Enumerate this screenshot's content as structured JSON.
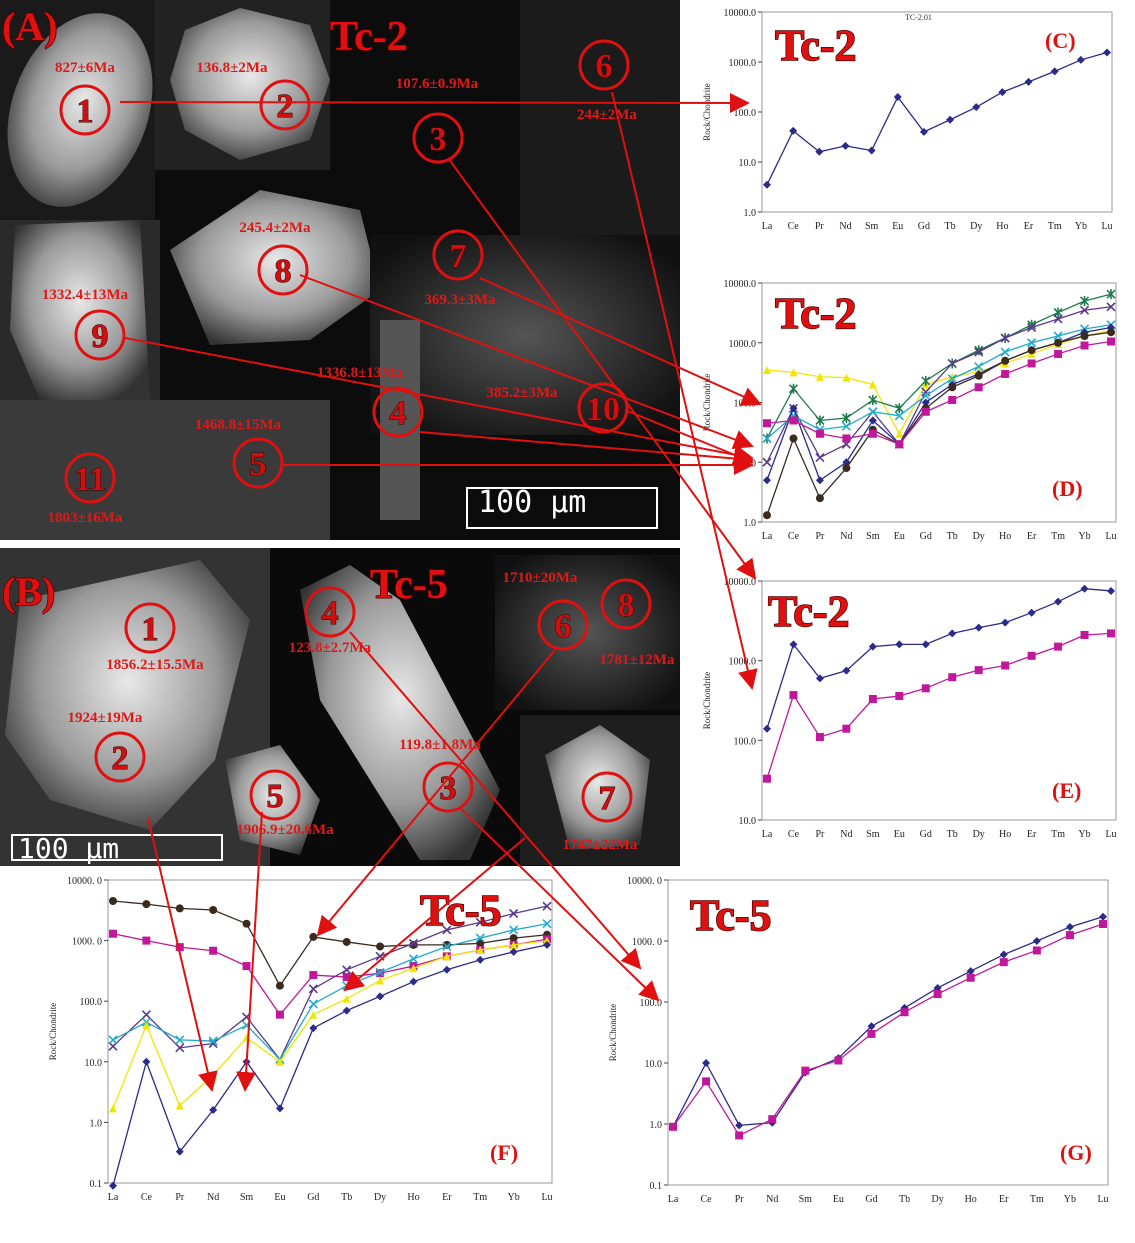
{
  "panel_a": {
    "label": "(A)",
    "title": "Tc-2",
    "scale_bar": "100 μm",
    "grains": [
      {
        "number": 1,
        "age": "827±6Ma"
      },
      {
        "number": 2,
        "age": "136.8±2Ma"
      },
      {
        "number": 3,
        "age": "107.6±0.9Ma"
      },
      {
        "number": 4,
        "age": "1336.8±13Ma"
      },
      {
        "number": 5,
        "age": "1468.8±15Ma"
      },
      {
        "number": 6,
        "age": "244±2Ma"
      },
      {
        "number": 7,
        "age": "369.3±3Ma"
      },
      {
        "number": 8,
        "age": "245.4±2Ma"
      },
      {
        "number": 9,
        "age": "1332.4±13Ma"
      },
      {
        "number": 10,
        "age": "385.2±3Ma"
      },
      {
        "number": 11,
        "age": "1803±16Ma"
      }
    ]
  },
  "panel_b": {
    "label": "(B)",
    "title": "Tc-5",
    "scale_bar": "100 μm",
    "grains": [
      {
        "number": 1,
        "age": "1856.2±15.5Ma"
      },
      {
        "number": 2,
        "age": "1924±19Ma"
      },
      {
        "number": 3,
        "age": "119.8±1.8Ma"
      },
      {
        "number": 4,
        "age": "123.8±2.7Ma"
      },
      {
        "number": 5,
        "age": "1906.9±20.6Ma"
      },
      {
        "number": 6,
        "age": "1710±20Ma"
      },
      {
        "number": 7,
        "age": "1747±22Ma"
      },
      {
        "number": 8,
        "age": "1781±12Ma"
      }
    ]
  },
  "chart_data": [
    {
      "type": "line",
      "title": "Tc-2",
      "subtitle": "TC-2.01",
      "panel": "(C)",
      "ylabel": "Rock/Chondrite",
      "log_scale": true,
      "categories": [
        "La",
        "Ce",
        "Pr",
        "Nd",
        "Sm",
        "Eu",
        "Gd",
        "Tb",
        "Dy",
        "Ho",
        "Er",
        "Tm",
        "Yb",
        "Lu"
      ],
      "ylim": [
        1,
        10000
      ],
      "yticks": [
        {
          "value": 1,
          "label": "1.0"
        },
        {
          "value": 10,
          "label": "10.0"
        },
        {
          "value": 100,
          "label": "100.0"
        },
        {
          "value": 1000,
          "label": "1000.0"
        },
        {
          "value": 10000,
          "label": "10000.0"
        }
      ],
      "series": [
        {
          "color": "#2b2b8a",
          "marker": "diamond",
          "values": [
            3.5,
            42,
            16,
            21,
            17,
            200,
            40,
            70,
            125,
            250,
            400,
            650,
            1100,
            1550
          ]
        }
      ]
    },
    {
      "type": "line",
      "title": "Tc-2",
      "panel": "(D)",
      "ylabel": "Rock/Chondrite",
      "log_scale": true,
      "categories": [
        "La",
        "Ce",
        "Pr",
        "Nd",
        "Sm",
        "Eu",
        "Gd",
        "Tb",
        "Dy",
        "Ho",
        "Er",
        "Tm",
        "Yb",
        "Lu"
      ],
      "ylim": [
        1,
        10000
      ],
      "yticks": [
        {
          "value": 1,
          "label": "1.0"
        },
        {
          "value": 10,
          "label": "10.0"
        },
        {
          "value": 100,
          "label": "100.0"
        },
        {
          "value": 1000,
          "label": "1000.0"
        },
        {
          "value": 10000,
          "label": "10000.0"
        }
      ],
      "series": [
        {
          "color": "#f2e600",
          "marker": "triangle",
          "values": [
            350,
            320,
            270,
            260,
            200,
            30,
            200,
            270,
            330,
            450,
            650,
            950,
            1300,
            1600
          ]
        },
        {
          "color": "#1f7a4a",
          "marker": "star",
          "values": [
            25,
            170,
            50,
            55,
            110,
            80,
            230,
            450,
            750,
            1200,
            2000,
            3200,
            5000,
            6500
          ]
        },
        {
          "color": "#5a3a8a",
          "marker": "x",
          "values": [
            10,
            80,
            12,
            20,
            70,
            20,
            150,
            450,
            700,
            1200,
            1800,
            2500,
            3500,
            4000
          ]
        },
        {
          "color": "#22aacc",
          "marker": "x",
          "values": [
            25,
            60,
            35,
            40,
            70,
            60,
            130,
            250,
            400,
            700,
            1000,
            1300,
            1700,
            2000
          ]
        },
        {
          "color": "#2b2b8a",
          "marker": "diamond",
          "values": [
            5,
            80,
            5,
            10,
            50,
            20,
            100,
            200,
            300,
            500,
            750,
            1000,
            1500,
            1800
          ]
        },
        {
          "color": "#3a2a20",
          "marker": "circle",
          "values": [
            1.3,
            25,
            2.5,
            8,
            35,
            20,
            80,
            180,
            280,
            500,
            750,
            1000,
            1300,
            1500
          ]
        },
        {
          "color": "#c0189a",
          "marker": "square",
          "values": [
            45,
            50,
            30,
            25,
            30,
            20,
            70,
            110,
            180,
            300,
            450,
            650,
            900,
            1050
          ]
        }
      ]
    },
    {
      "type": "line",
      "title": "Tc-2",
      "panel": "(E)",
      "ylabel": "Rock/Chondrite",
      "log_scale": true,
      "categories": [
        "La",
        "Ce",
        "Pr",
        "Nd",
        "Sm",
        "Eu",
        "Gd",
        "Tb",
        "Dy",
        "Ho",
        "Er",
        "Tm",
        "Yb",
        "Lu"
      ],
      "ylim": [
        10,
        10000
      ],
      "yticks": [
        {
          "value": 10,
          "label": "10.0"
        },
        {
          "value": 100,
          "label": "100.0"
        },
        {
          "value": 1000,
          "label": "1000.0"
        },
        {
          "value": 10000,
          "label": "10000.0"
        }
      ],
      "series": [
        {
          "color": "#2b2b8a",
          "marker": "diamond",
          "values": [
            140,
            1600,
            600,
            750,
            1500,
            1600,
            1600,
            2200,
            2600,
            3000,
            4000,
            5500,
            8000,
            7500
          ]
        },
        {
          "color": "#c0189a",
          "marker": "square",
          "values": [
            33,
            370,
            110,
            140,
            330,
            360,
            450,
            620,
            760,
            870,
            1150,
            1500,
            2100,
            2200
          ]
        }
      ]
    },
    {
      "type": "line",
      "title": "Tc-5",
      "panel": "(F)",
      "ylabel": "Rock/Chondrite",
      "log_scale": true,
      "categories": [
        "La",
        "Ce",
        "Pr",
        "Nd",
        "Sm",
        "Eu",
        "Gd",
        "Tb",
        "Dy",
        "Ho",
        "Er",
        "Tm",
        "Yb",
        "Lu"
      ],
      "ylim": [
        0.1,
        10000
      ],
      "yticks": [
        0.1,
        {
          "value": 1,
          "label": "1.0"
        },
        {
          "value": 10,
          "label": "10.0"
        },
        {
          "value": 100,
          "label": "100.0"
        },
        {
          "value": 1000,
          "label": "1000. 0"
        },
        {
          "value": 10000,
          "label": "10000. 0"
        }
      ],
      "series": [
        {
          "color": "#3a2a20",
          "marker": "circle",
          "values": [
            4500,
            4000,
            3400,
            3200,
            1900,
            180,
            1150,
            950,
            800,
            850,
            850,
            900,
            1100,
            1250
          ]
        },
        {
          "color": "#c0189a",
          "marker": "square",
          "values": [
            1300,
            1000,
            780,
            680,
            380,
            60,
            270,
            250,
            290,
            380,
            550,
            700,
            850,
            1050
          ]
        },
        {
          "color": "#5a3a8a",
          "marker": "x",
          "values": [
            18,
            60,
            17,
            20,
            55,
            11,
            160,
            330,
            550,
            900,
            1500,
            2000,
            2800,
            3700
          ]
        },
        {
          "color": "#22aacc",
          "marker": "x",
          "values": [
            23,
            45,
            23,
            22,
            40,
            11,
            90,
            180,
            300,
            500,
            800,
            1100,
            1500,
            1900
          ]
        },
        {
          "color": "#f2e600",
          "marker": "triangle",
          "values": [
            1.7,
            40,
            1.9,
            6,
            25,
            10,
            60,
            110,
            220,
            350,
            550,
            700,
            850,
            1000
          ]
        },
        {
          "color": "#2b2b8a",
          "marker": "diamond",
          "values": [
            0.09,
            10,
            0.33,
            1.6,
            10,
            1.7,
            36,
            70,
            120,
            210,
            330,
            480,
            650,
            850
          ]
        }
      ]
    },
    {
      "type": "line",
      "title": "Tc-5",
      "panel": "(G)",
      "ylabel": "Rock/Chondrite",
      "log_scale": true,
      "categories": [
        "La",
        "Ce",
        "Pr",
        "Nd",
        "Sm",
        "Eu",
        "Gd",
        "Tb",
        "Dy",
        "Ho",
        "Er",
        "Tm",
        "Yb",
        "Lu"
      ],
      "ylim": [
        0.1,
        10000
      ],
      "yticks": [
        0.1,
        {
          "value": 1,
          "label": "1.0"
        },
        {
          "value": 10,
          "label": "10.0"
        },
        {
          "value": 100,
          "label": "100.0"
        },
        {
          "value": 1000,
          "label": "1000. 0"
        },
        {
          "value": 10000,
          "label": "10000. 0"
        }
      ],
      "series": [
        {
          "color": "#2b2b8a",
          "marker": "diamond",
          "values": [
            0.9,
            10,
            0.95,
            1.05,
            7,
            12,
            40,
            80,
            170,
            320,
            600,
            1000,
            1700,
            2500
          ]
        },
        {
          "color": "#c0189a",
          "marker": "square",
          "values": [
            0.9,
            5,
            0.65,
            1.2,
            7.5,
            11,
            30,
            68,
            135,
            250,
            450,
            700,
            1250,
            1900
          ]
        }
      ]
    }
  ]
}
